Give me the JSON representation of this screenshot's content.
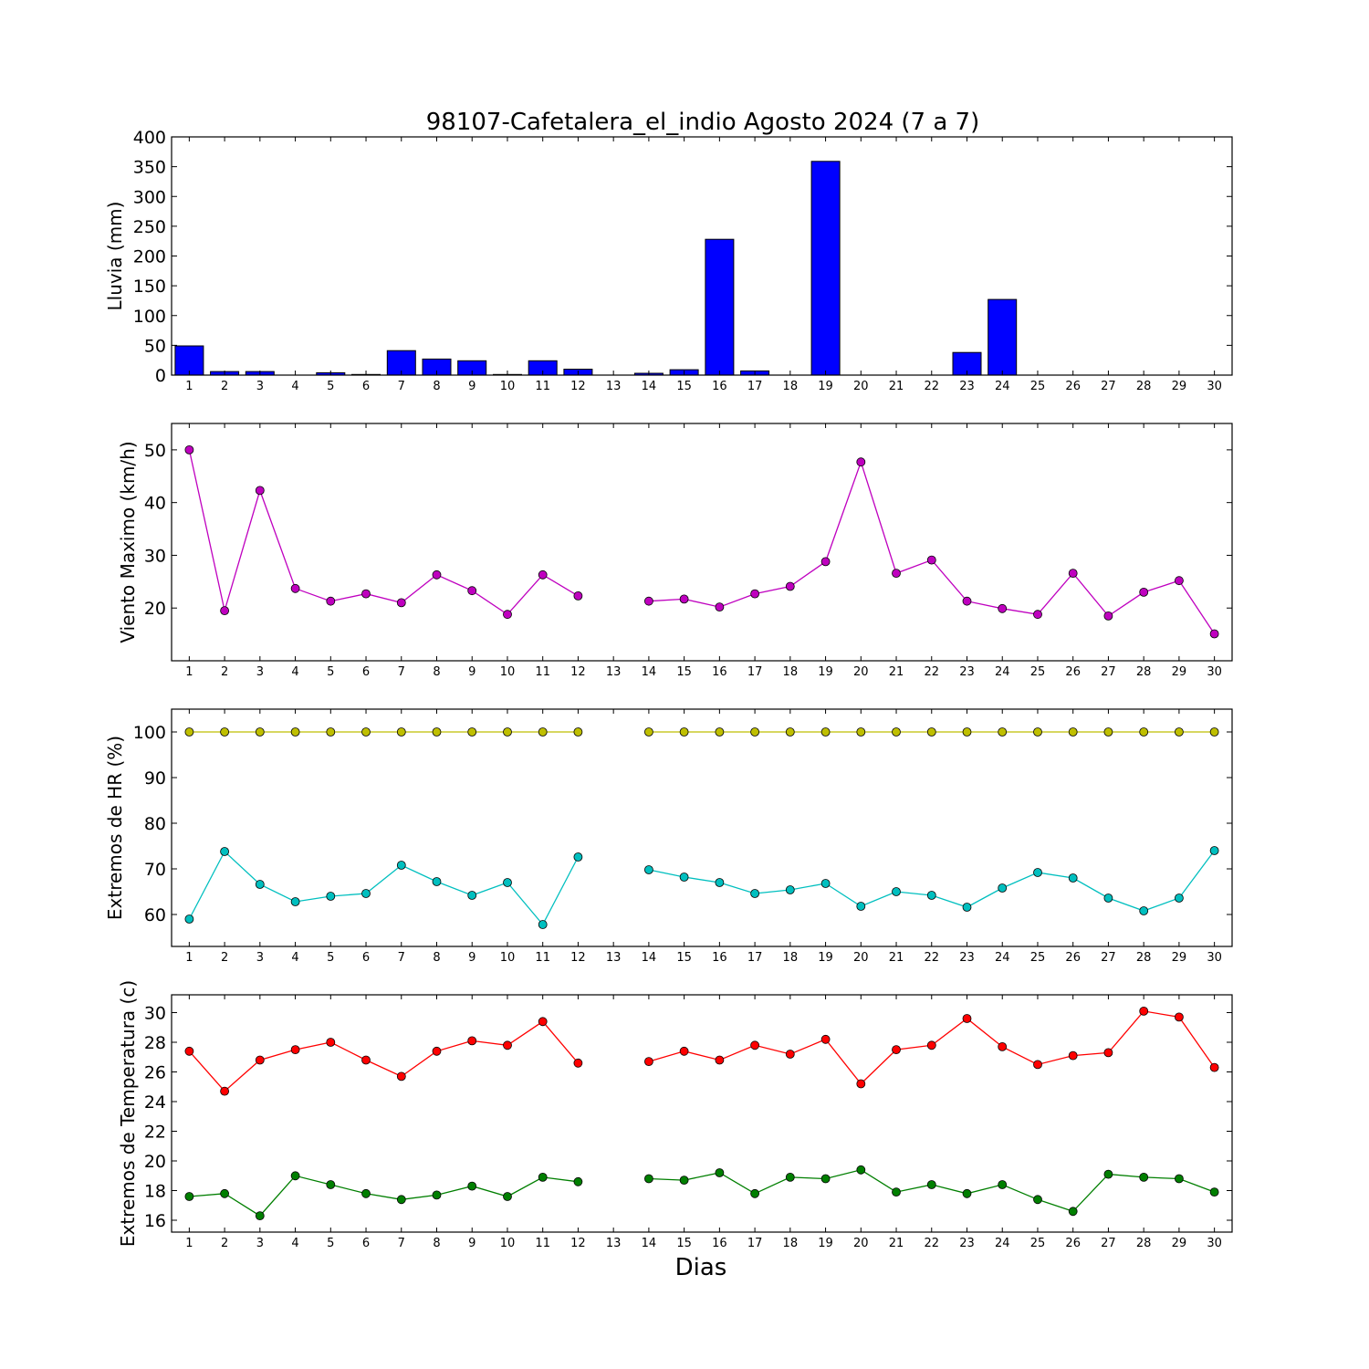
{
  "chart_data": [
    {
      "type": "bar",
      "title": "98107-Cafetalera_el_indio Agosto 2024  (7 a 7)",
      "ylabel": "Lluvia (mm)",
      "xlabel": "",
      "x": [
        1,
        2,
        3,
        4,
        5,
        6,
        7,
        8,
        9,
        10,
        11,
        12,
        13,
        14,
        15,
        16,
        17,
        18,
        19,
        20,
        21,
        22,
        23,
        24,
        25,
        26,
        27,
        28,
        29,
        30
      ],
      "xlim": [
        0.5,
        30.5
      ],
      "ylim": [
        0,
        400
      ],
      "yticks": [
        0,
        50,
        100,
        150,
        200,
        250,
        300,
        350,
        400
      ],
      "grid": false,
      "series": [
        {
          "color": "#0000ff",
          "values": [
            49,
            6,
            6,
            0,
            4,
            1,
            41,
            27,
            24,
            1,
            24,
            10,
            0,
            3,
            9,
            228,
            7,
            0,
            359,
            0,
            0,
            0,
            38,
            127,
            0,
            0,
            0,
            0,
            0,
            0
          ]
        }
      ]
    },
    {
      "type": "line",
      "ylabel": "Viento Maximo (km/h)",
      "xlabel": "",
      "x": [
        1,
        2,
        3,
        4,
        5,
        6,
        7,
        8,
        9,
        10,
        11,
        12,
        13,
        14,
        15,
        16,
        17,
        18,
        19,
        20,
        21,
        22,
        23,
        24,
        25,
        26,
        27,
        28,
        29,
        30
      ],
      "xlim": [
        0.5,
        30.5
      ],
      "ylim": [
        10,
        55
      ],
      "yticks": [
        20,
        30,
        40,
        50
      ],
      "grid": false,
      "series": [
        {
          "color": "#bf00bf",
          "values": [
            50.0,
            19.5,
            42.3,
            23.7,
            21.3,
            22.7,
            21.0,
            26.3,
            23.3,
            18.8,
            26.3,
            22.3,
            null,
            21.3,
            21.7,
            20.2,
            22.7,
            24.1,
            28.8,
            47.7,
            26.6,
            29.1,
            21.3,
            19.9,
            18.8,
            26.6,
            18.5,
            23.0,
            25.2,
            15.1
          ]
        }
      ]
    },
    {
      "type": "line",
      "ylabel": "Extremos de HR (%)",
      "xlabel": "",
      "x": [
        1,
        2,
        3,
        4,
        5,
        6,
        7,
        8,
        9,
        10,
        11,
        12,
        13,
        14,
        15,
        16,
        17,
        18,
        19,
        20,
        21,
        22,
        23,
        24,
        25,
        26,
        27,
        28,
        29,
        30
      ],
      "xlim": [
        0.5,
        30.5
      ],
      "ylim": [
        53,
        105
      ],
      "yticks": [
        60,
        70,
        80,
        90,
        100
      ],
      "grid": false,
      "series": [
        {
          "color": "#bfbf00",
          "values": [
            100,
            100,
            100,
            100,
            100,
            100,
            100,
            100,
            100,
            100,
            100,
            100,
            null,
            100,
            100,
            100,
            100,
            100,
            100,
            100,
            100,
            100,
            100,
            100,
            100,
            100,
            100,
            100,
            100,
            100
          ]
        },
        {
          "color": "#00bfbf",
          "values": [
            59.0,
            73.8,
            66.6,
            62.8,
            64.0,
            64.6,
            70.8,
            67.2,
            64.2,
            67.0,
            57.8,
            72.6,
            null,
            69.8,
            68.2,
            67.0,
            64.6,
            65.4,
            66.8,
            61.8,
            65.0,
            64.2,
            61.6,
            65.8,
            69.2,
            68.0,
            63.6,
            60.8,
            63.6,
            74.0
          ]
        }
      ]
    },
    {
      "type": "line",
      "ylabel": "Extremos de Temperatura (c)",
      "xlabel": "Dias",
      "x": [
        1,
        2,
        3,
        4,
        5,
        6,
        7,
        8,
        9,
        10,
        11,
        12,
        13,
        14,
        15,
        16,
        17,
        18,
        19,
        20,
        21,
        22,
        23,
        24,
        25,
        26,
        27,
        28,
        29,
        30
      ],
      "xlim": [
        0.5,
        30.5
      ],
      "ylim": [
        15.2,
        31.2
      ],
      "yticks": [
        16,
        18,
        20,
        22,
        24,
        26,
        28,
        30
      ],
      "grid": false,
      "series": [
        {
          "color": "#ff0000",
          "values": [
            27.4,
            24.7,
            26.8,
            27.5,
            28.0,
            26.8,
            25.7,
            27.4,
            28.1,
            27.8,
            29.4,
            26.6,
            null,
            26.7,
            27.4,
            26.8,
            27.8,
            27.2,
            28.2,
            25.2,
            27.5,
            27.8,
            29.6,
            27.7,
            26.5,
            27.1,
            27.3,
            30.1,
            29.7,
            26.3
          ]
        },
        {
          "color": "#007f00",
          "values": [
            17.6,
            17.8,
            16.3,
            19.0,
            18.4,
            17.8,
            17.4,
            17.7,
            18.3,
            17.6,
            18.9,
            18.6,
            null,
            18.8,
            18.7,
            19.2,
            17.8,
            18.9,
            18.8,
            19.4,
            17.9,
            18.4,
            17.8,
            18.4,
            17.4,
            16.6,
            19.1,
            18.9,
            18.8,
            17.9
          ]
        }
      ]
    }
  ]
}
